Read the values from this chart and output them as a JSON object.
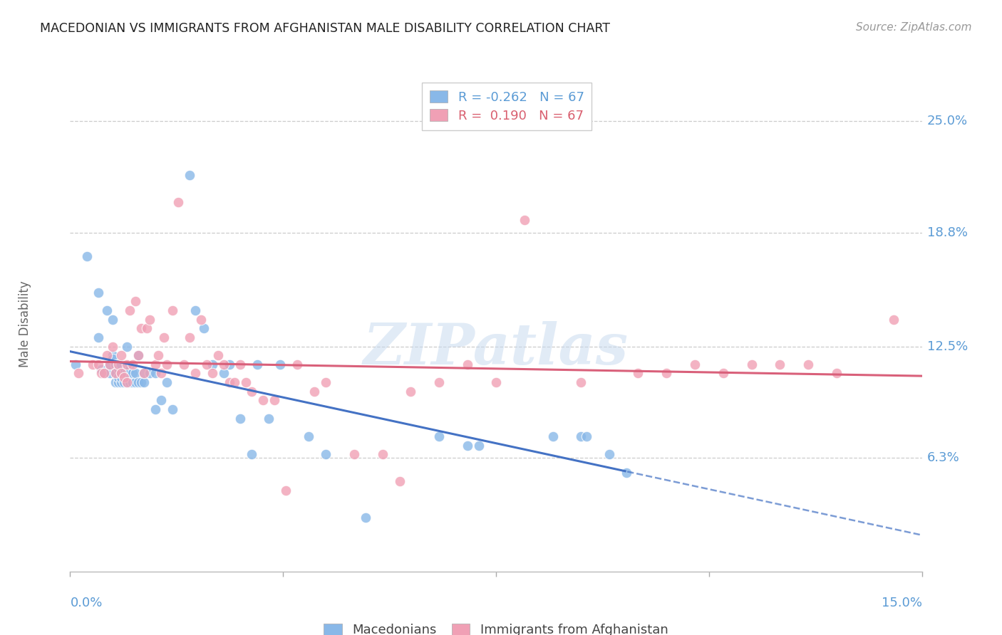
{
  "title": "MACEDONIAN VS IMMIGRANTS FROM AFGHANISTAN MALE DISABILITY CORRELATION CHART",
  "source": "Source: ZipAtlas.com",
  "ylabel": "Male Disability",
  "y_ticks": [
    6.3,
    12.5,
    18.8,
    25.0
  ],
  "y_tick_labels": [
    "6.3%",
    "12.5%",
    "18.8%",
    "25.0%"
  ],
  "x_range": [
    0.0,
    15.0
  ],
  "y_range": [
    0.0,
    27.5
  ],
  "watermark": "ZIPatlas",
  "legend_r_macedonian": "-0.262",
  "legend_n_macedonian": "67",
  "legend_r_afghanistan": "0.190",
  "legend_n_afghanistan": "67",
  "macedonian_color": "#89b8e8",
  "afghanistan_color": "#f0a0b5",
  "macedonian_line_color": "#4472c4",
  "afghanistan_line_color": "#d9607a",
  "background_color": "#ffffff",
  "macedonians_x": [
    0.1,
    0.3,
    0.5,
    0.5,
    0.55,
    0.6,
    0.65,
    0.7,
    0.7,
    0.75,
    0.75,
    0.75,
    0.8,
    0.8,
    0.8,
    0.85,
    0.85,
    0.85,
    0.9,
    0.9,
    0.9,
    0.9,
    0.95,
    0.95,
    1.0,
    1.0,
    1.0,
    1.0,
    1.05,
    1.05,
    1.1,
    1.1,
    1.15,
    1.15,
    1.2,
    1.2,
    1.25,
    1.3,
    1.3,
    1.4,
    1.5,
    1.5,
    1.6,
    1.7,
    1.8,
    2.1,
    2.2,
    2.35,
    2.5,
    2.7,
    2.8,
    3.0,
    3.2,
    3.3,
    3.5,
    3.7,
    4.2,
    4.5,
    5.2,
    6.5,
    7.0,
    7.2,
    8.5,
    9.0,
    9.1,
    9.5,
    9.8
  ],
  "macedonians_y": [
    11.5,
    17.5,
    15.5,
    13.0,
    11.2,
    11.0,
    14.5,
    11.0,
    11.5,
    12.0,
    14.0,
    11.8,
    10.5,
    11.0,
    11.5,
    10.5,
    10.8,
    11.3,
    10.5,
    10.8,
    11.0,
    11.5,
    10.5,
    11.0,
    10.5,
    10.8,
    11.0,
    12.5,
    10.5,
    11.2,
    10.5,
    11.0,
    10.5,
    11.0,
    10.5,
    12.0,
    10.5,
    10.5,
    11.0,
    11.0,
    9.0,
    11.0,
    9.5,
    10.5,
    9.0,
    22.0,
    14.5,
    13.5,
    11.5,
    11.0,
    11.5,
    8.5,
    6.5,
    11.5,
    8.5,
    11.5,
    7.5,
    6.5,
    3.0,
    7.5,
    7.0,
    7.0,
    7.5,
    7.5,
    7.5,
    6.5,
    5.5
  ],
  "afghanistan_x": [
    0.15,
    0.4,
    0.5,
    0.55,
    0.6,
    0.65,
    0.7,
    0.75,
    0.8,
    0.85,
    0.9,
    0.9,
    0.95,
    1.0,
    1.0,
    1.05,
    1.1,
    1.15,
    1.2,
    1.25,
    1.3,
    1.35,
    1.4,
    1.5,
    1.55,
    1.6,
    1.65,
    1.7,
    1.8,
    1.9,
    2.0,
    2.1,
    2.2,
    2.3,
    2.4,
    2.5,
    2.6,
    2.7,
    2.8,
    2.9,
    3.0,
    3.1,
    3.2,
    3.4,
    3.6,
    3.8,
    4.0,
    4.3,
    4.5,
    5.0,
    5.5,
    5.8,
    6.0,
    6.5,
    7.0,
    7.5,
    8.0,
    9.0,
    10.0,
    10.5,
    11.0,
    11.5,
    12.0,
    12.5,
    13.0,
    13.5,
    14.5
  ],
  "afghanistan_y": [
    11.0,
    11.5,
    11.5,
    11.0,
    11.0,
    12.0,
    11.5,
    12.5,
    11.0,
    11.5,
    11.0,
    12.0,
    10.8,
    10.5,
    11.5,
    14.5,
    11.5,
    15.0,
    12.0,
    13.5,
    11.0,
    13.5,
    14.0,
    11.5,
    12.0,
    11.0,
    13.0,
    11.5,
    14.5,
    20.5,
    11.5,
    13.0,
    11.0,
    14.0,
    11.5,
    11.0,
    12.0,
    11.5,
    10.5,
    10.5,
    11.5,
    10.5,
    10.0,
    9.5,
    9.5,
    4.5,
    11.5,
    10.0,
    10.5,
    6.5,
    6.5,
    5.0,
    10.0,
    10.5,
    11.5,
    10.5,
    19.5,
    10.5,
    11.0,
    11.0,
    11.5,
    11.0,
    11.5,
    11.5,
    11.5,
    11.0,
    14.0
  ]
}
